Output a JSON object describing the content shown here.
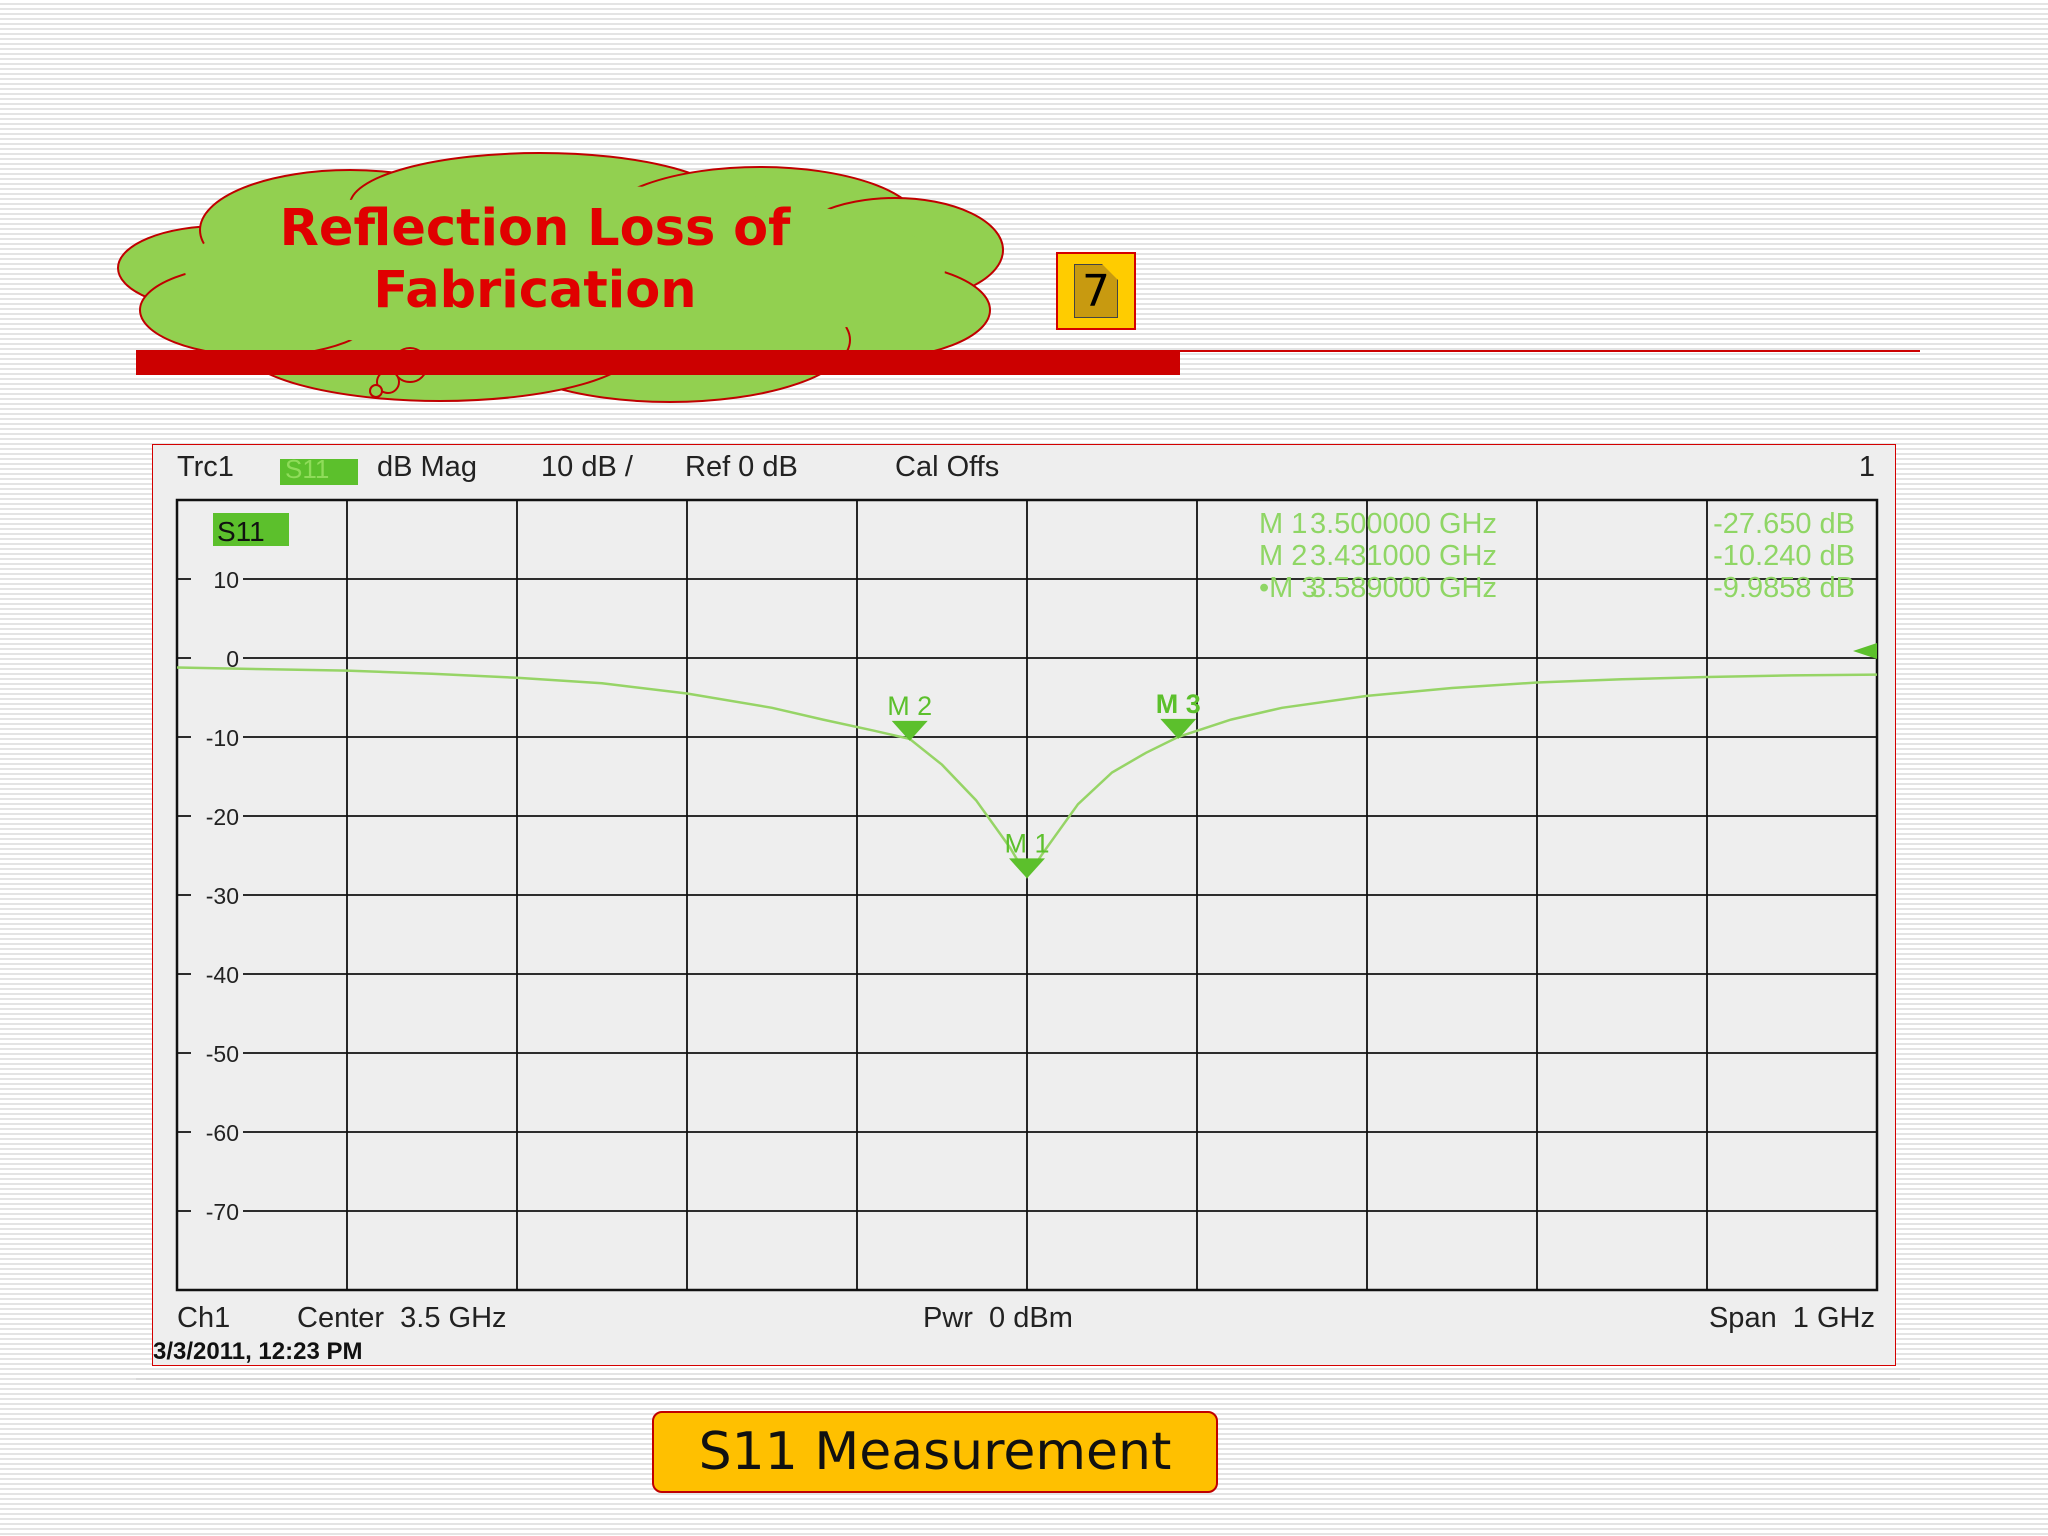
{
  "slide": {
    "title_line1": "Reflection Loss of",
    "title_line2": "Fabrication",
    "page_number": "7",
    "caption": "S11 Measurement"
  },
  "colors": {
    "title": "#e00000",
    "cloud_fill": "#92d050",
    "accent_red": "#cc0000",
    "caption_bg": "#ffc000",
    "trace": "#96d466",
    "marker": "#5cc02c"
  },
  "vna": {
    "trace_label": "Trc1",
    "param_badge": "S11",
    "format": "dB Mag",
    "scale": "10 dB /",
    "ref": "Ref 0 dB",
    "cal": "Cal Offs",
    "channel_number": "1",
    "graph_label": "S11",
    "footer_channel": "Ch1",
    "footer_center": "Center  3.5 GHz",
    "footer_power": "Pwr  0 dBm",
    "footer_span": "Span  1 GHz",
    "timestamp": "3/3/2011, 12:23 PM",
    "markers": [
      {
        "name": "M 1",
        "freq": "3.500000 GHz",
        "value": "-27.650 dB"
      },
      {
        "name": "M 2",
        "freq": "3.431000 GHz",
        "value": "-10.240 dB"
      },
      {
        "name": "M 3",
        "freq": "3.589000 GHz",
        "value": "-9.9858 dB"
      }
    ]
  },
  "chart_data": {
    "type": "line",
    "xlabel": "",
    "ylabel": "",
    "xlim": [
      3.0,
      4.0
    ],
    "ylim": [
      -80,
      20
    ],
    "x_unit": "GHz",
    "y_unit": "dB",
    "grid": true,
    "y_ticks": [
      10,
      0,
      -10,
      -20,
      -30,
      -40,
      -50,
      -60,
      -70
    ],
    "series": [
      {
        "name": "S11",
        "x": [
          3.0,
          3.05,
          3.1,
          3.15,
          3.2,
          3.25,
          3.3,
          3.35,
          3.38,
          3.41,
          3.431,
          3.45,
          3.47,
          3.49,
          3.5,
          3.51,
          3.53,
          3.55,
          3.57,
          3.589,
          3.62,
          3.65,
          3.7,
          3.75,
          3.8,
          3.85,
          3.9,
          3.95,
          4.0
        ],
        "y": [
          -1.2,
          -1.4,
          -1.6,
          -2.0,
          -2.5,
          -3.2,
          -4.5,
          -6.3,
          -7.8,
          -9.2,
          -10.24,
          -13.5,
          -18.0,
          -24.0,
          -27.65,
          -24.5,
          -18.5,
          -14.5,
          -12.0,
          -9.99,
          -7.8,
          -6.3,
          -4.8,
          -3.8,
          -3.1,
          -2.7,
          -2.4,
          -2.2,
          -2.1
        ]
      }
    ],
    "markers": [
      {
        "label": "M 1",
        "x": 3.5,
        "y": -27.65
      },
      {
        "label": "M 2",
        "x": 3.431,
        "y": -10.24
      },
      {
        "label": "M 3",
        "x": 3.589,
        "y": -9.9858
      }
    ]
  }
}
